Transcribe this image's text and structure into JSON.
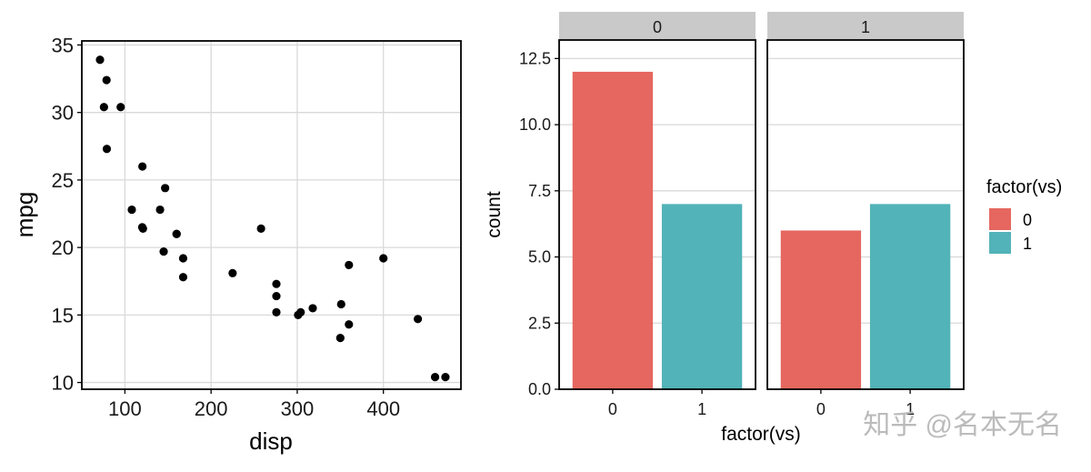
{
  "chart_data": [
    {
      "type": "scatter",
      "xlabel": "disp",
      "ylabel": "mpg",
      "xlim": [
        50,
        490
      ],
      "ylim": [
        9.5,
        35.3
      ],
      "xticks": [
        100,
        200,
        300,
        400
      ],
      "yticks": [
        10,
        15,
        20,
        25,
        30,
        35
      ],
      "grid": true,
      "points": [
        {
          "x": 71.1,
          "y": 33.9
        },
        {
          "x": 75.7,
          "y": 30.4
        },
        {
          "x": 78.7,
          "y": 32.4
        },
        {
          "x": 79.0,
          "y": 27.3
        },
        {
          "x": 95.1,
          "y": 30.4
        },
        {
          "x": 108.0,
          "y": 22.8
        },
        {
          "x": 120.1,
          "y": 21.5
        },
        {
          "x": 120.3,
          "y": 26.0
        },
        {
          "x": 121.0,
          "y": 21.4
        },
        {
          "x": 140.8,
          "y": 22.8
        },
        {
          "x": 145.0,
          "y": 19.7
        },
        {
          "x": 146.7,
          "y": 24.4
        },
        {
          "x": 160.0,
          "y": 21.0
        },
        {
          "x": 160.0,
          "y": 21.0
        },
        {
          "x": 167.6,
          "y": 19.2
        },
        {
          "x": 167.6,
          "y": 17.8
        },
        {
          "x": 225.0,
          "y": 18.1
        },
        {
          "x": 258.0,
          "y": 21.4
        },
        {
          "x": 275.8,
          "y": 16.4
        },
        {
          "x": 275.8,
          "y": 17.3
        },
        {
          "x": 275.8,
          "y": 15.2
        },
        {
          "x": 301.0,
          "y": 15.0
        },
        {
          "x": 304.0,
          "y": 15.2
        },
        {
          "x": 318.0,
          "y": 15.5
        },
        {
          "x": 350.0,
          "y": 13.3
        },
        {
          "x": 351.0,
          "y": 15.8
        },
        {
          "x": 360.0,
          "y": 18.7
        },
        {
          "x": 360.0,
          "y": 14.3
        },
        {
          "x": 400.0,
          "y": 19.2
        },
        {
          "x": 440.0,
          "y": 14.7
        },
        {
          "x": 460.0,
          "y": 10.4
        },
        {
          "x": 472.0,
          "y": 10.4
        }
      ]
    },
    {
      "type": "bar",
      "facet_by": "am",
      "xlabel": "factor(vs)",
      "ylabel": "count",
      "ylim": [
        0,
        13.2
      ],
      "yticks": [
        "0.0",
        "2.5",
        "5.0",
        "7.5",
        "10.0",
        "12.5"
      ],
      "categories": [
        "0",
        "1"
      ],
      "legend": {
        "title": "factor(vs)",
        "position": "right",
        "entries": [
          {
            "label": "0",
            "color": "#E5675F"
          },
          {
            "label": "1",
            "color": "#52B3B8"
          }
        ]
      },
      "facets": [
        {
          "label": "0",
          "values": [
            12,
            7
          ]
        },
        {
          "label": "1",
          "values": [
            6,
            7
          ]
        }
      ]
    }
  ],
  "colors": {
    "point": "#000000",
    "grid": "#d9d9d9",
    "panel_border": "#000000",
    "strip_background": "#c9c9c9",
    "watermark": "#b8b8b8"
  },
  "watermark": "知乎 @名本无名"
}
